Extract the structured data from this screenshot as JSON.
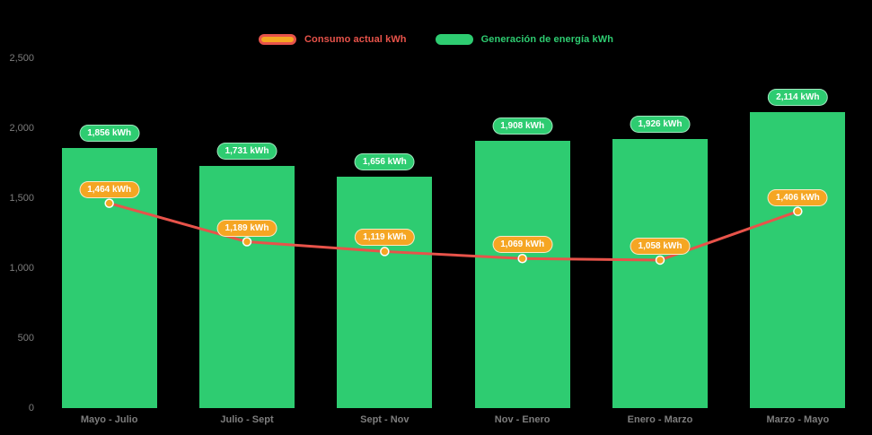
{
  "chart_data": {
    "type": "bar+line",
    "title": "",
    "categories": [
      "Mayo - Julio",
      "Julio - Sept",
      "Sept - Nov",
      "Nov - Enero",
      "Enero - Marzo",
      "Marzo - Mayo"
    ],
    "series": [
      {
        "name": "Consumo actual kWh",
        "type": "line",
        "values": [
          1464,
          1189,
          1119,
          1069,
          1058,
          1406
        ],
        "labels": [
          "1,464 kWh",
          "1,189 kWh",
          "1,119 kWh",
          "1,069 kWh",
          "1,058 kWh",
          "1,406 kWh"
        ],
        "color": "#e8534a",
        "point_color": "#f5a623",
        "badge_color": "#f5a623"
      },
      {
        "name": "Generación de energía kWh",
        "type": "bar",
        "values": [
          1856,
          1731,
          1656,
          1908,
          1926,
          2114
        ],
        "labels": [
          "1,856 kWh",
          "1,731 kWh",
          "1,656 kWh",
          "1,908 kWh",
          "1,926 kWh",
          "2,114 kWh"
        ],
        "color": "#2ecc71",
        "badge_color": "#2ecc71"
      }
    ],
    "ylim": [
      0,
      2500
    ],
    "yticks": [
      0,
      500,
      1000,
      1500,
      2000,
      2500
    ],
    "ytick_labels": [
      "0",
      "500",
      "1,000",
      "1,500",
      "2,000",
      "2,500"
    ],
    "legend_position": "top",
    "grid": "off",
    "background_color": "#000000",
    "axis_text_color": "#7d7d7d"
  }
}
